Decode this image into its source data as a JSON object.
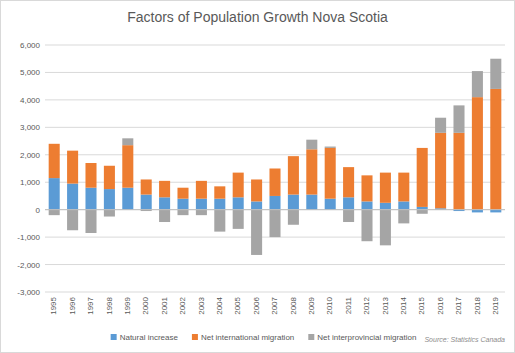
{
  "chart_data": {
    "type": "bar",
    "title": "Factors of Population Growth Nova Scotia",
    "annotations": [
      "Source: Statistics Canada"
    ],
    "categories": [
      "1995",
      "1996",
      "1997",
      "1998",
      "1999",
      "2000",
      "2001",
      "2002",
      "2003",
      "2004",
      "2005",
      "2006",
      "2007",
      "2008",
      "2009",
      "2010",
      "2011",
      "2012",
      "2013",
      "2014",
      "2015",
      "2016",
      "2017",
      "2018",
      "2019"
    ],
    "series": [
      {
        "name": "Natural increase",
        "color": "#5b9bd5",
        "values": [
          1150,
          950,
          800,
          750,
          800,
          550,
          450,
          400,
          400,
          400,
          450,
          300,
          500,
          550,
          550,
          400,
          450,
          300,
          250,
          300,
          100,
          50,
          -50,
          -100,
          -100
        ]
      },
      {
        "name": "Net international migration",
        "color": "#ed7d31",
        "values": [
          1250,
          1200,
          900,
          850,
          1550,
          550,
          600,
          400,
          650,
          450,
          900,
          800,
          1000,
          1400,
          1650,
          1850,
          1100,
          950,
          1100,
          1050,
          2150,
          2750,
          2800,
          4100,
          4400
        ]
      },
      {
        "name": "Net interprovincial migration",
        "color": "#a5a5a5",
        "values": [
          -200,
          -750,
          -850,
          -250,
          250,
          -50,
          -450,
          -200,
          -200,
          -800,
          -700,
          -1650,
          -1000,
          -550,
          350,
          50,
          -450,
          -1150,
          -1300,
          -500,
          -150,
          550,
          1000,
          950,
          1100
        ]
      }
    ],
    "ylim": [
      -3000,
      6000
    ],
    "yticks": [
      {
        "value": -3000,
        "label": "-3,000"
      },
      {
        "value": -2000,
        "label": "-2,000"
      },
      {
        "value": -1000,
        "label": "-1,000"
      },
      0,
      {
        "value": 1000,
        "label": "1,000"
      },
      {
        "value": 2000,
        "label": "2,000"
      },
      {
        "value": 3000,
        "label": "3,000"
      },
      {
        "value": 4000,
        "label": "4,000"
      },
      {
        "value": 5000,
        "label": "5,000"
      },
      {
        "value": 6000,
        "label": "6,000"
      }
    ],
    "stacked": true,
    "grid": true,
    "legend": "bottom"
  }
}
